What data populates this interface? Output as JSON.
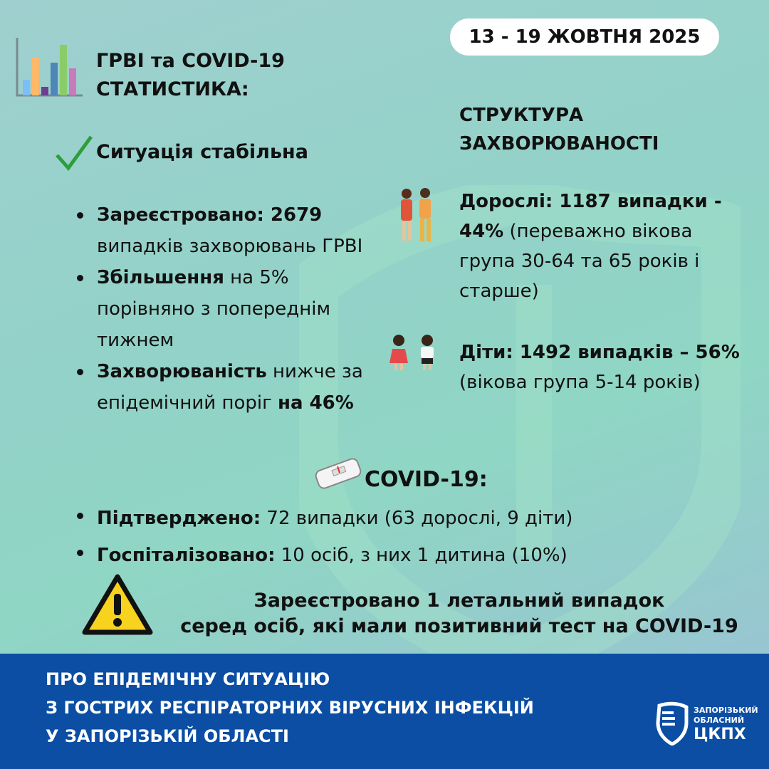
{
  "header": {
    "title_line1": "ГРВІ та COVID-19",
    "title_line2": "СТАТИСТИКА:",
    "date": "13 - 19 ЖОВТНЯ 2025"
  },
  "status": {
    "icon": "checkmark-icon",
    "text": "Ситуація стабільна"
  },
  "ari": {
    "items": [
      {
        "bold": "Зареєстровано: 2679",
        "rest": " випадків захворювань ГРВІ"
      },
      {
        "bold": "Збільшення",
        "rest": " на 5% порівняно з попереднім тижнем"
      },
      {
        "bold": "Захворюваність",
        "rest": " нижче за епідемічний поріг ",
        "bold2": "на 46%"
      }
    ]
  },
  "structure": {
    "title_line1": "СТРУКТУРА",
    "title_line2": "ЗАХВОРЮВАНОСТІ",
    "adults": {
      "bold": "Дорослі: 1187 випадки - 44%",
      "rest": " (переважно вікова група 30-64 та 65 років і старше)"
    },
    "children": {
      "bold": "Діти: 1492 випадків – 56%",
      "rest": " (вікова група 5-14 років)"
    }
  },
  "covid": {
    "title": "COVID-19:",
    "items": [
      {
        "bold": "Підтверджено:",
        "rest": " 72 випадки (63 дорослі, 9 діти)"
      },
      {
        "bold": "Госпіталізовано:",
        "rest": " 10 осіб, з них 1 дитина (10%)"
      }
    ]
  },
  "warning": {
    "line1": "Зареєстровано 1 летальний випадок",
    "line2": "серед осіб, які мали позитивний тест на COVID-19"
  },
  "footer": {
    "line1": "ПРО ЕПІДЕМІЧНУ СИТУАЦІЮ",
    "line2": "З ГОСТРИХ РЕСПІРАТОРНИХ ВІРУСНИХ ІНФЕКЦІЙ",
    "line3": "У ЗАПОРІЗЬКІЙ ОБЛАСТІ"
  },
  "logo": {
    "line1": "ЗАПОРІЗЬКИЙ",
    "line2": "ОБЛАСНИЙ",
    "line3": "ЦКПХ"
  },
  "colors": {
    "footer": "#0b4ea3",
    "check": "#2e9e3a",
    "warning": "#f7d21e"
  }
}
